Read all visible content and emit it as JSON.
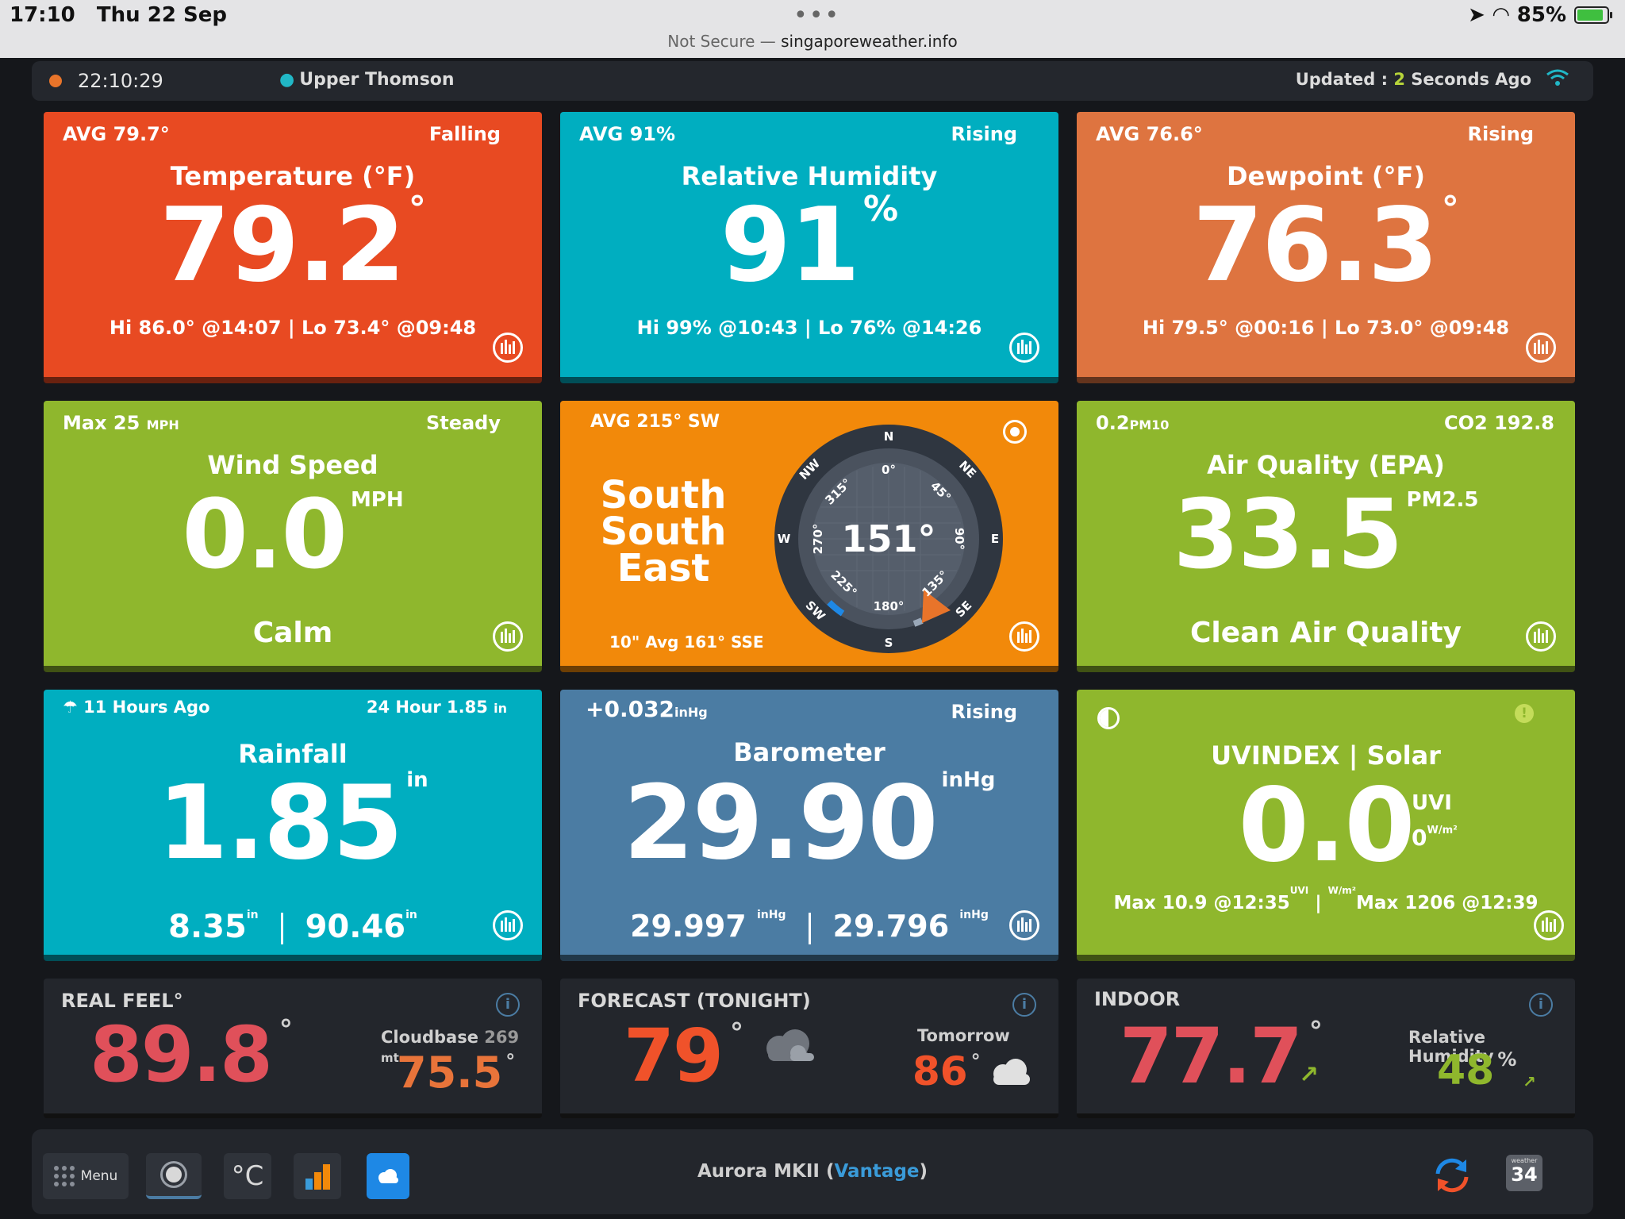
{
  "status_bar": {
    "time": "17:10",
    "date": "Thu 22 Sep",
    "url_prefix": "Not Secure —",
    "url": "singaporeweather.info",
    "battery": "85%"
  },
  "topbar": {
    "clock": "22:10:29",
    "location": "Upper Thomson",
    "updated_prefix": "Updated :",
    "updated_num": "2",
    "updated_suffix": "Seconds Ago"
  },
  "temperature": {
    "avg": "AVG 79.7°",
    "trend": "Falling",
    "title": "Temperature (°F)",
    "value": "79.2",
    "unit": "°",
    "hilo": "Hi 86.0° @14:07 | Lo 73.4° @09:48"
  },
  "humidity": {
    "avg": "AVG 91%",
    "trend": "Rising",
    "title": "Relative Humidity",
    "value": "91",
    "unit": "%",
    "hilo": "Hi 99% @10:43 | Lo 76% @14:26"
  },
  "dewpoint": {
    "avg": "AVG 76.6°",
    "trend": "Rising",
    "title": "Dewpoint (°F)",
    "value": "76.3",
    "unit": "°",
    "hilo": "Hi 79.5° @00:16 | Lo 73.0° @09:48"
  },
  "wind_speed": {
    "max": "Max 25",
    "max_unit": "MPH",
    "trend": "Steady",
    "title": "Wind Speed",
    "value": "0.0",
    "unit": "MPH",
    "desc": "Calm"
  },
  "wind_dir": {
    "avg": "AVG 215° SW",
    "line1": "South",
    "line2": "South",
    "line3": "East",
    "foot": "10\" Avg 161° SSE",
    "degrees": "151°",
    "cardinals": {
      "n": "N",
      "ne": "NE",
      "e": "E",
      "se": "SE",
      "s": "S",
      "sw": "SW",
      "w": "W",
      "nw": "NW"
    },
    "ticks": {
      "t0": "0°",
      "t45": "45°",
      "t90": "90°",
      "t135": "135°",
      "t180": "180°",
      "t225": "225°",
      "t270": "270°",
      "t315": "315°"
    }
  },
  "air_quality": {
    "pm10_val": "0.2",
    "pm10_unit": "PM10",
    "co2": "CO2 192.8",
    "title": "Air Quality (EPA)",
    "value": "33.5",
    "unit": "PM2.5",
    "desc": "Clean Air Quality"
  },
  "rainfall": {
    "last": "11 Hours Ago",
    "day_label": "24 Hour 1.85",
    "day_unit": "in",
    "title": "Rainfall",
    "value": "1.85",
    "unit": "in",
    "v1": "8.35",
    "v1_unit": "in",
    "v2": "90.46",
    "v2_unit": "in"
  },
  "barometer": {
    "change": "+0.032",
    "change_unit": "inHg",
    "trend": "Rising",
    "title": "Barometer",
    "value": "29.90",
    "unit": "inHg",
    "hi": "29.997",
    "hi_unit": "inHg",
    "lo": "29.796",
    "lo_unit": "inHg"
  },
  "uv": {
    "title": "UVINDEX | Solar",
    "value": "0.0",
    "uv_unit": "UVI",
    "solar": "0",
    "solar_unit": "W/m²",
    "max_uv": "Max 10.9 @12:35",
    "max_uv_unit": "UVI",
    "sep": "|",
    "max_solar_unit": "W/m²",
    "max_solar": "Max 1206 @12:39"
  },
  "real_feel": {
    "title": "REAL FEEL°",
    "value": "89.8",
    "unit": "°",
    "cloudbase_label": "Cloudbase",
    "cloudbase_val": "269",
    "cloudbase_unit": "mt",
    "second": "75.5",
    "second_unit": "°"
  },
  "forecast": {
    "title": "FORECAST (TONIGHT)",
    "value": "79",
    "unit": "°",
    "tomorrow_label": "Tomorrow",
    "tomorrow_val": "86",
    "tomorrow_unit": "°"
  },
  "indoor": {
    "title": "INDOOR",
    "value": "77.7",
    "unit": "°",
    "hum_label": "Relative Humidity",
    "hum_val": "48",
    "hum_unit": "%"
  },
  "toolbar": {
    "menu": "Menu",
    "celsius": "°C",
    "station_prefix": "Aurora MKII (",
    "station_link": "Vantage",
    "station_suffix": ")",
    "w34_small": "weather",
    "w34_num": "34"
  },
  "colors": {
    "temperature": "#e84a22",
    "humidity": "#00aec0",
    "dewpoint": "#de7440",
    "green": "#8fb72d",
    "wind_dir": "#f2890a",
    "barometer": "#4b7ca3",
    "real_feel": "#e0505a",
    "forecast": "#f0522a",
    "second_orange": "#e8743a"
  },
  "icons": [
    "location-pin-icon",
    "wifi-icon",
    "chart-icon",
    "target-icon",
    "umbrella-icon",
    "half-circle-icon",
    "warning-icon",
    "info-icon",
    "cloud-icon",
    "trend-icon",
    "menu-icon",
    "sun-icon",
    "bar-chart-icon",
    "refresh-icon"
  ]
}
